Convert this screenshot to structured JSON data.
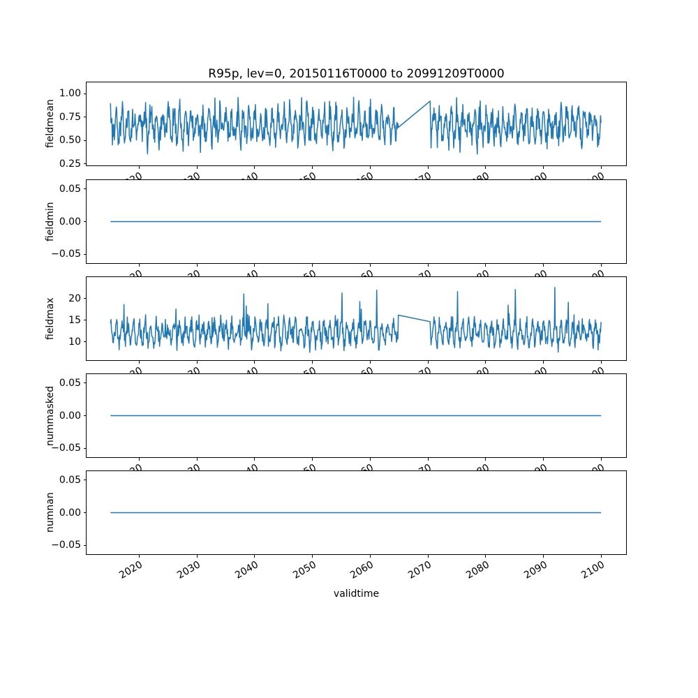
{
  "chart_data": {
    "type": "line",
    "title": "R95p, lev=0, 20150116T0000 to 20991209T0000",
    "xlabel": "validtime",
    "line_color": "#1f77b4",
    "background_color": "#ffffff",
    "grid": false,
    "legend": null,
    "x": {
      "start_year": 2015.0417,
      "end_year": 2099.9583,
      "points_per_year": 12,
      "n_points": 1020,
      "data_gap_years": [
        2064.9,
        2070.3
      ]
    },
    "xlim": [
      2010.9,
      2104.3
    ],
    "xtick_years": [
      2020,
      2030,
      2040,
      2050,
      2060,
      2070,
      2080,
      2090,
      2100
    ],
    "xtick_labels": [
      "2020",
      "2030",
      "2040",
      "2050",
      "2060",
      "2070",
      "2080",
      "2090",
      "2100"
    ],
    "subplots": [
      {
        "ylabel": "fieldmean",
        "ylim": [
          0.235,
          1.119
        ],
        "ytick_values": [
          1.0,
          0.75,
          0.5,
          0.25
        ],
        "ytick_labels": [
          "1.00",
          "0.75",
          "0.50",
          "0.25"
        ],
        "series": {
          "kind": "seasonal_noise",
          "seed": 5,
          "base": 0.66,
          "phase": 3,
          "seas_amp": 0.14,
          "amp_min": 0.5,
          "amp_rand": 1.0,
          "noise": 0.13,
          "spike_prob": 0,
          "spike_base": 0,
          "spike_rand": 0,
          "clamp": [
            0.28,
            1.06
          ],
          "gap_edge_values": [
            0.64,
            0.92
          ]
        }
      },
      {
        "ylabel": "fieldmin",
        "ylim": [
          -0.0635,
          0.0635
        ],
        "ytick_values": [
          0.05,
          0.0,
          -0.05
        ],
        "ytick_labels": [
          "0.05",
          "0.00",
          "−0.05"
        ],
        "series": {
          "kind": "constant",
          "value": 0.0
        }
      },
      {
        "ylabel": "fieldmax",
        "ylim": [
          5.8,
          25.0
        ],
        "ytick_values": [
          20,
          15,
          10
        ],
        "ytick_labels": [
          "20",
          "15",
          "10"
        ],
        "series": {
          "kind": "seasonal_noise",
          "seed": 11,
          "base": 12.1,
          "phase": 3,
          "seas_amp": 2.0,
          "amp_min": 0.5,
          "amp_rand": 1.1,
          "noise": 1.6,
          "spike_prob": 0.038,
          "spike_base": 2.5,
          "spike_rand": 5.5,
          "clamp": [
            7.2,
            22.6
          ],
          "gap_edge_values": [
            16.2,
            14.7
          ]
        }
      },
      {
        "ylabel": "nummasked",
        "ylim": [
          -0.0635,
          0.0635
        ],
        "ytick_values": [
          0.05,
          0.0,
          -0.05
        ],
        "ytick_labels": [
          "0.05",
          "0.00",
          "−0.05"
        ],
        "series": {
          "kind": "constant",
          "value": 0.0
        }
      },
      {
        "ylabel": "numnan",
        "ylim": [
          -0.0635,
          0.0635
        ],
        "ytick_values": [
          0.05,
          0.0,
          -0.05
        ],
        "ytick_labels": [
          "0.05",
          "0.00",
          "−0.05"
        ],
        "series": {
          "kind": "constant",
          "value": 0.0
        }
      }
    ]
  }
}
